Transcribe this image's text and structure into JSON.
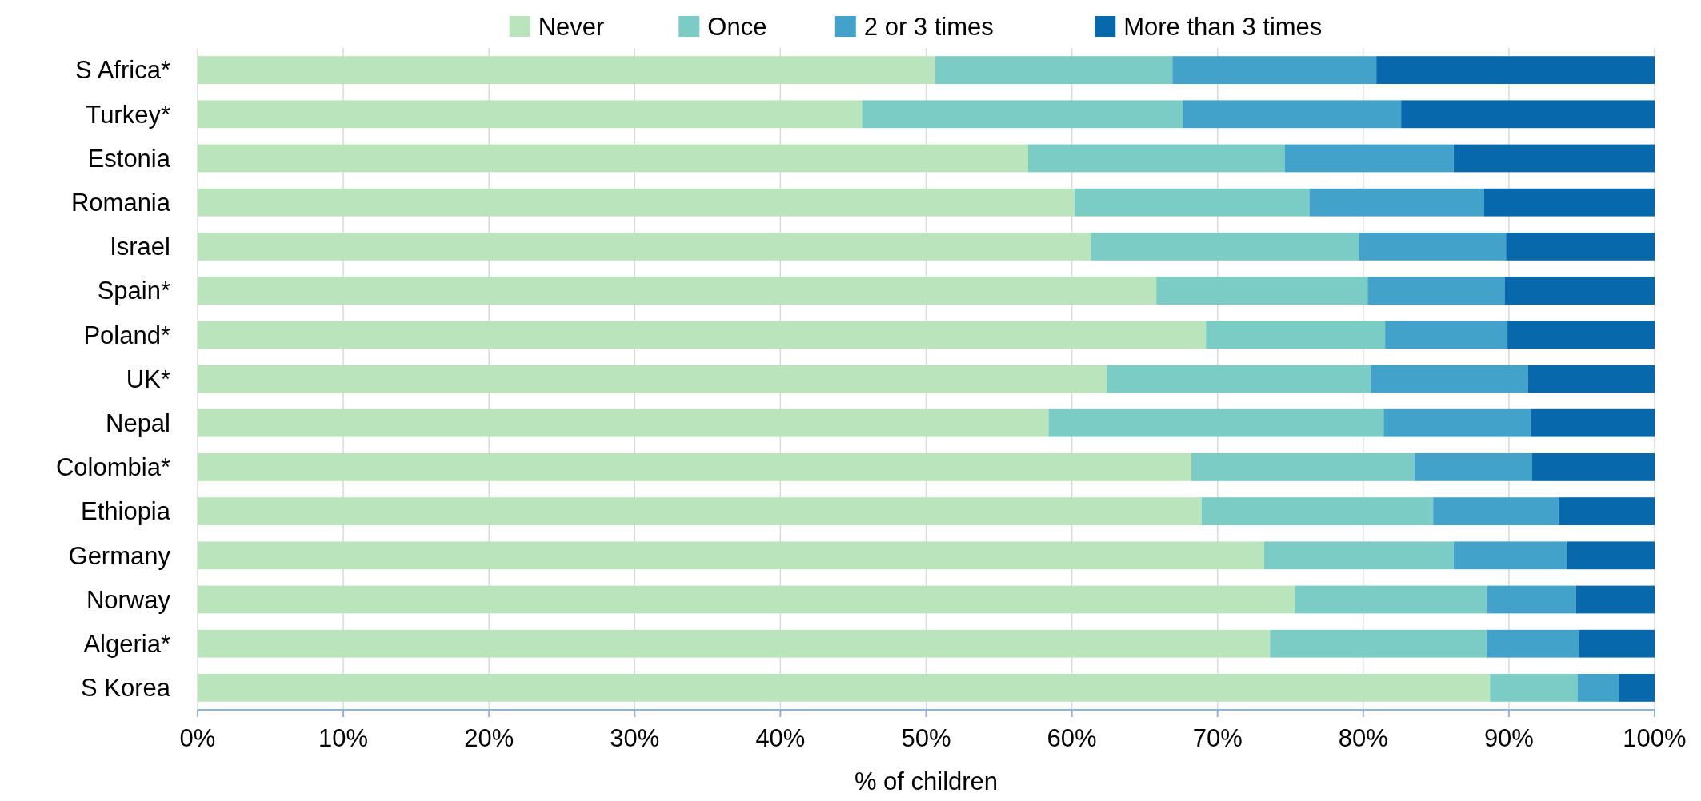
{
  "chart_data": {
    "type": "bar",
    "orientation": "horizontal",
    "stacked": true,
    "xlabel": "% of children",
    "categories": [
      "S Africa*",
      "Turkey*",
      "Estonia",
      "Romania",
      "Israel",
      "Spain*",
      "Poland*",
      "UK*",
      "Nepal",
      "Colombia*",
      "Ethiopia",
      "Germany",
      "Norway",
      "Algeria*",
      "S Korea"
    ],
    "series": [
      {
        "name": "Never",
        "color": "#bae4bc",
        "values": [
          50.6,
          45.6,
          57.0,
          60.2,
          61.3,
          65.8,
          69.2,
          62.4,
          58.4,
          68.2,
          68.9,
          73.2,
          75.3,
          73.6,
          88.7
        ]
      },
      {
        "name": "Once",
        "color": "#7bccc4",
        "values": [
          16.3,
          22.0,
          17.6,
          16.1,
          18.4,
          14.5,
          12.3,
          18.1,
          23.0,
          15.3,
          15.9,
          13.0,
          13.2,
          14.9,
          6.0
        ]
      },
      {
        "name": "2 or 3 times",
        "color": "#43a2ca",
        "values": [
          14.0,
          15.0,
          11.6,
          12.0,
          10.1,
          9.4,
          8.4,
          10.8,
          10.1,
          8.1,
          8.6,
          7.8,
          6.1,
          6.3,
          2.8
        ]
      },
      {
        "name": "More than 3 times",
        "color": "#0868ac",
        "values": [
          19.1,
          17.4,
          13.8,
          11.7,
          10.2,
          10.3,
          10.1,
          8.7,
          8.5,
          8.4,
          6.6,
          6.0,
          5.4,
          5.2,
          2.5
        ]
      }
    ],
    "xlim": [
      0,
      100
    ],
    "xticks": [
      {
        "value": 0,
        "label": "0%"
      },
      {
        "value": 10,
        "label": "10%"
      },
      {
        "value": 20,
        "label": "20%"
      },
      {
        "value": 30,
        "label": "30%"
      },
      {
        "value": 40,
        "label": "40%"
      },
      {
        "value": 50,
        "label": "50%"
      },
      {
        "value": 60,
        "label": "60%"
      },
      {
        "value": 70,
        "label": "70%"
      },
      {
        "value": 80,
        "label": "80%"
      },
      {
        "value": 90,
        "label": "90%"
      },
      {
        "value": 100,
        "label": "100%"
      }
    ],
    "grid": "x",
    "legend": "top"
  }
}
